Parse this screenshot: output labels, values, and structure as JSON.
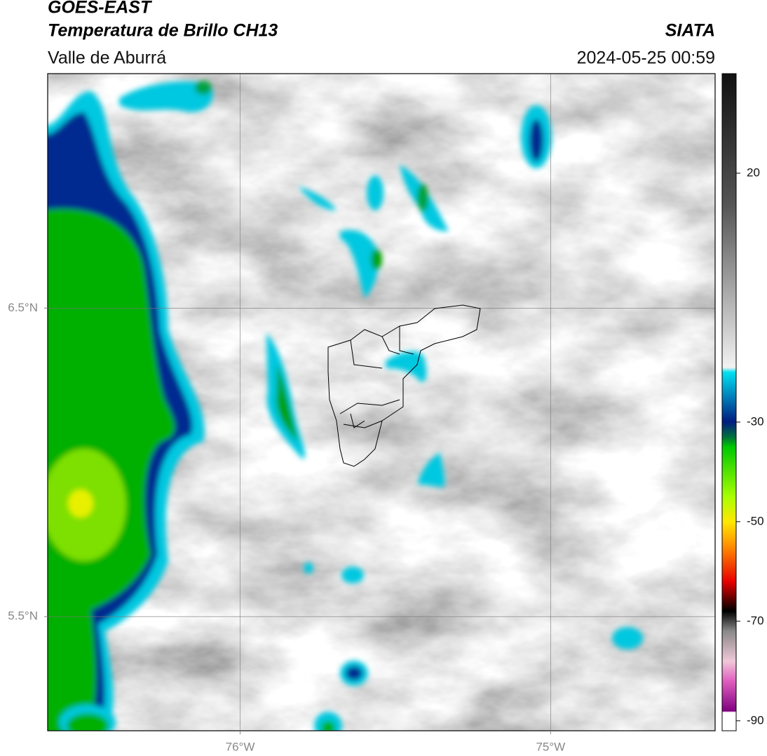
{
  "header": {
    "title": "GOES-EAST",
    "subtitle": "Temperatura de Brillo CH13",
    "source": "SIATA",
    "region": "Valle de Aburrá",
    "datetime": "2024-05-25 00:59"
  },
  "map": {
    "xlim": [
      -76.62,
      -74.47
    ],
    "ylim": [
      5.13,
      7.26
    ],
    "xticks": [
      {
        "value": -76,
        "label": "76°W"
      },
      {
        "value": -75,
        "label": "75°W"
      }
    ],
    "yticks": [
      {
        "value": 6.5,
        "label": "6.5°N"
      },
      {
        "value": 5.5,
        "label": "5.5°N"
      }
    ],
    "grid": true
  },
  "colorbar": {
    "lim": [
      -92,
      40
    ],
    "ticks": [
      20,
      -30,
      -50,
      -70,
      -90
    ]
  }
}
